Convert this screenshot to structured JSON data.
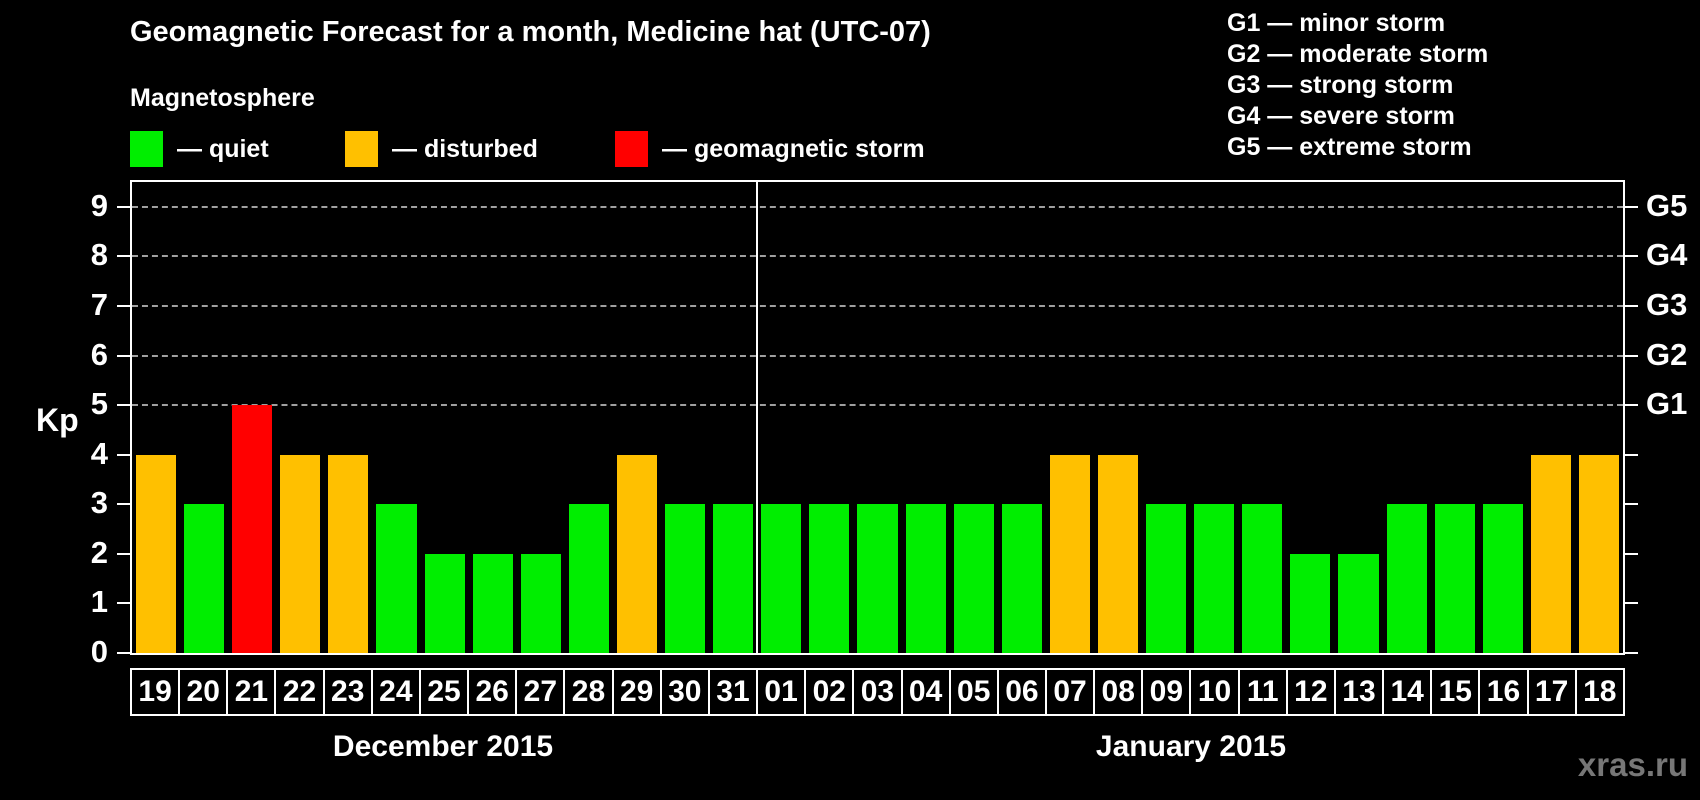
{
  "title": "Geomagnetic Forecast for a month, Medicine hat (UTC-07)",
  "subtitle": "Magnetosphere",
  "legend": {
    "items": [
      {
        "kind": "quiet",
        "label": "— quiet"
      },
      {
        "kind": "disturbed",
        "label": "— disturbed"
      },
      {
        "kind": "storm",
        "label": "— geomagnetic storm"
      }
    ]
  },
  "storm_scale_legend": [
    "G1 — minor storm",
    "G2 — moderate storm",
    "G3 — strong storm",
    "G4 — severe storm",
    "G5 — extreme storm"
  ],
  "colors": {
    "quiet": "#00ee00",
    "disturbed": "#ffc000",
    "storm": "#ff0000",
    "axis": "#ffffff",
    "grid": "#a0a0a0",
    "watermark": "#777777",
    "background": "#000000"
  },
  "chart_data": {
    "type": "bar",
    "title": "Geomagnetic Forecast for a month, Medicine hat (UTC-07)",
    "ylabel": "Kp",
    "ylim": [
      0,
      9.5
    ],
    "yticks": [
      0,
      1,
      2,
      3,
      4,
      5,
      6,
      7,
      8,
      9
    ],
    "gridlines_at": [
      5,
      6,
      7,
      8,
      9
    ],
    "grid": "dashed horizontal at storm levels only",
    "legend_position": "top-left and top-right",
    "right_axis": [
      {
        "kp": 5,
        "label": "G1"
      },
      {
        "kp": 6,
        "label": "G2"
      },
      {
        "kp": 7,
        "label": "G3"
      },
      {
        "kp": 8,
        "label": "G4"
      },
      {
        "kp": 9,
        "label": "G5"
      }
    ],
    "months": [
      {
        "label": "December 2015",
        "bars": [
          {
            "day": "19",
            "kp": 4,
            "kind": "disturbed"
          },
          {
            "day": "20",
            "kp": 3,
            "kind": "quiet"
          },
          {
            "day": "21",
            "kp": 5,
            "kind": "storm"
          },
          {
            "day": "22",
            "kp": 4,
            "kind": "disturbed"
          },
          {
            "day": "23",
            "kp": 4,
            "kind": "disturbed"
          },
          {
            "day": "24",
            "kp": 3,
            "kind": "quiet"
          },
          {
            "day": "25",
            "kp": 2,
            "kind": "quiet"
          },
          {
            "day": "26",
            "kp": 2,
            "kind": "quiet"
          },
          {
            "day": "27",
            "kp": 2,
            "kind": "quiet"
          },
          {
            "day": "28",
            "kp": 3,
            "kind": "quiet"
          },
          {
            "day": "29",
            "kp": 4,
            "kind": "disturbed"
          },
          {
            "day": "30",
            "kp": 3,
            "kind": "quiet"
          },
          {
            "day": "31",
            "kp": 3,
            "kind": "quiet"
          }
        ]
      },
      {
        "label": "January 2015",
        "bars": [
          {
            "day": "01",
            "kp": 3,
            "kind": "quiet"
          },
          {
            "day": "02",
            "kp": 3,
            "kind": "quiet"
          },
          {
            "day": "03",
            "kp": 3,
            "kind": "quiet"
          },
          {
            "day": "04",
            "kp": 3,
            "kind": "quiet"
          },
          {
            "day": "05",
            "kp": 3,
            "kind": "quiet"
          },
          {
            "day": "06",
            "kp": 3,
            "kind": "quiet"
          },
          {
            "day": "07",
            "kp": 4,
            "kind": "disturbed"
          },
          {
            "day": "08",
            "kp": 4,
            "kind": "disturbed"
          },
          {
            "day": "09",
            "kp": 3,
            "kind": "quiet"
          },
          {
            "day": "10",
            "kp": 3,
            "kind": "quiet"
          },
          {
            "day": "11",
            "kp": 3,
            "kind": "quiet"
          },
          {
            "day": "12",
            "kp": 2,
            "kind": "quiet"
          },
          {
            "day": "13",
            "kp": 2,
            "kind": "quiet"
          },
          {
            "day": "14",
            "kp": 3,
            "kind": "quiet"
          },
          {
            "day": "15",
            "kp": 3,
            "kind": "quiet"
          },
          {
            "day": "16",
            "kp": 3,
            "kind": "quiet"
          },
          {
            "day": "17",
            "kp": 4,
            "kind": "disturbed"
          },
          {
            "day": "18",
            "kp": 4,
            "kind": "disturbed"
          }
        ]
      }
    ]
  },
  "watermark": "xras.ru"
}
